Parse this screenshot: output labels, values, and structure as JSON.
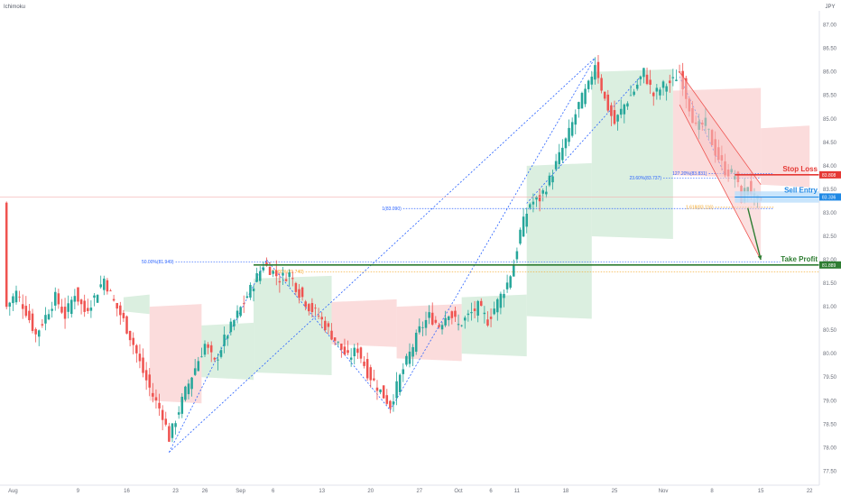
{
  "header": {
    "indicator_label": "Ichimoku",
    "currency_label": "JPY"
  },
  "colors": {
    "up": "#26a69a",
    "down": "#ef5350",
    "stop_loss": "#e53935",
    "sell_entry": "#1e88e5",
    "take_profit": "#2e7d32",
    "fib_blue": "#2962ff",
    "fib_orange": "#f5a623",
    "kumo_bull": "#cfe9d6",
    "kumo_bear": "#f9d0d0",
    "channel_fill": "#f8c7c7",
    "channel_line": "#ef5350",
    "entry_zone": "#bbdefb"
  },
  "annotations": {
    "stop_loss_label": "Stop Loss",
    "sell_entry_label": "Sell Entry",
    "take_profit_label": "Take Profit"
  },
  "chart_data": {
    "type": "candlestick",
    "symbol_currency": "JPY",
    "indicator": "Ichimoku",
    "ylim": [
      77.2,
      87.3
    ],
    "y_ticks": [
      "77.50",
      "78.00",
      "78.50",
      "79.00",
      "79.50",
      "80.00",
      "80.50",
      "81.00",
      "81.50",
      "82.00",
      "82.50",
      "83.00",
      "83.50",
      "84.00",
      "84.50",
      "85.00",
      "85.50",
      "86.00",
      "86.50",
      "87.00"
    ],
    "x_ticks": [
      {
        "label": "Aug",
        "bar": 2
      },
      {
        "label": "9",
        "bar": 22
      },
      {
        "label": "16",
        "bar": 37
      },
      {
        "label": "23",
        "bar": 52
      },
      {
        "label": "26",
        "bar": 61
      },
      {
        "label": "Sep",
        "bar": 72
      },
      {
        "label": "6",
        "bar": 82
      },
      {
        "label": "13",
        "bar": 97
      },
      {
        "label": "20",
        "bar": 112
      },
      {
        "label": "27",
        "bar": 127
      },
      {
        "label": "Oct",
        "bar": 139
      },
      {
        "label": "6",
        "bar": 149
      },
      {
        "label": "11",
        "bar": 157
      },
      {
        "label": "18",
        "bar": 172
      },
      {
        "label": "25",
        "bar": 187
      },
      {
        "label": "Nov",
        "bar": 202
      },
      {
        "label": "8",
        "bar": 217
      },
      {
        "label": "15",
        "bar": 232
      },
      {
        "label": "22",
        "bar": 247
      }
    ],
    "price_path": [
      [
        0,
        81.0
      ],
      [
        3,
        81.3
      ],
      [
        6,
        80.9
      ],
      [
        9,
        80.4
      ],
      [
        12,
        80.8
      ],
      [
        15,
        81.2
      ],
      [
        18,
        80.8
      ],
      [
        21,
        81.3
      ],
      [
        24,
        80.9
      ],
      [
        27,
        81.2
      ],
      [
        30,
        81.6
      ],
      [
        33,
        81.1
      ],
      [
        36,
        80.7
      ],
      [
        39,
        80.2
      ],
      [
        42,
        79.6
      ],
      [
        45,
        79.1
      ],
      [
        48,
        78.7
      ],
      [
        50,
        78.2
      ],
      [
        52,
        78.6
      ],
      [
        55,
        79.2
      ],
      [
        58,
        79.7
      ],
      [
        61,
        80.2
      ],
      [
        64,
        79.8
      ],
      [
        67,
        80.3
      ],
      [
        70,
        80.7
      ],
      [
        73,
        81.1
      ],
      [
        76,
        81.5
      ],
      [
        79,
        81.9
      ],
      [
        81,
        81.8
      ],
      [
        84,
        81.6
      ],
      [
        87,
        81.7
      ],
      [
        90,
        81.3
      ],
      [
        93,
        81.0
      ],
      [
        96,
        80.8
      ],
      [
        99,
        80.5
      ],
      [
        102,
        80.2
      ],
      [
        105,
        79.9
      ],
      [
        108,
        80.1
      ],
      [
        111,
        79.6
      ],
      [
        114,
        79.3
      ],
      [
        117,
        79.0
      ],
      [
        118,
        78.9
      ],
      [
        121,
        79.5
      ],
      [
        124,
        80.0
      ],
      [
        127,
        80.5
      ],
      [
        130,
        80.8
      ],
      [
        133,
        80.6
      ],
      [
        136,
        80.9
      ],
      [
        139,
        80.6
      ],
      [
        142,
        80.8
      ],
      [
        145,
        81.0
      ],
      [
        148,
        80.7
      ],
      [
        151,
        81.1
      ],
      [
        154,
        81.5
      ],
      [
        156,
        81.9
      ],
      [
        158,
        82.6
      ],
      [
        161,
        83.2
      ],
      [
        164,
        83.3
      ],
      [
        167,
        83.7
      ],
      [
        170,
        84.2
      ],
      [
        173,
        84.7
      ],
      [
        176,
        85.3
      ],
      [
        179,
        85.7
      ],
      [
        181,
        86.2
      ],
      [
        184,
        85.4
      ],
      [
        187,
        84.9
      ],
      [
        190,
        85.3
      ],
      [
        193,
        85.6
      ],
      [
        196,
        86.0
      ],
      [
        199,
        85.5
      ],
      [
        202,
        85.7
      ],
      [
        205,
        85.8
      ],
      [
        207,
        86.0
      ],
      [
        209,
        85.5
      ],
      [
        212,
        84.8
      ],
      [
        215,
        84.9
      ],
      [
        218,
        84.3
      ],
      [
        221,
        83.9
      ],
      [
        224,
        83.8
      ],
      [
        226,
        83.3
      ],
      [
        228,
        83.6
      ],
      [
        230,
        83.3
      ],
      [
        232,
        83.2
      ]
    ],
    "levels": {
      "stop_loss": 83.808,
      "sell_entry": 83.336,
      "take_profit": 81.889
    },
    "price_tags": {
      "stop_loss": "83.808",
      "sell_entry": "83.336",
      "take_profit": "81.889"
    },
    "fib_labels": {
      "retr_50": "50.00%(81.949)",
      "retr_100": "1(83.090)",
      "retr_236": "23.60%(83.737)",
      "retr_618": "61.80%(81.740)",
      "ext_127": "127.20%(83.831)",
      "ext_1618": "1.618(83.116)"
    },
    "fib_values": {
      "retr_50": 81.949,
      "retr_100": 83.09,
      "retr_236": 83.737,
      "retr_618": 81.74,
      "ext_127": 83.831,
      "ext_1618": 83.116
    },
    "reference_line": 83.336,
    "fib_diagonals": [
      [
        [
          50,
          77.9
        ],
        [
          181,
          86.3
        ]
      ],
      [
        [
          118,
          78.8
        ],
        [
          181,
          86.3
        ]
      ],
      [
        [
          50,
          77.9
        ],
        [
          80,
          82.0
        ]
      ],
      [
        [
          80,
          82.0
        ],
        [
          118,
          78.8
        ]
      ],
      [
        [
          160,
          83.2
        ],
        [
          195,
          85.9
        ]
      ],
      [
        [
          207,
          85.9
        ],
        [
          221,
          83.8
        ]
      ]
    ],
    "channel": {
      "upper_start": [
        207,
        86.0
      ],
      "upper_end": [
        232,
        83.6
      ],
      "lower_start": [
        207,
        85.3
      ],
      "lower_end": [
        232,
        82.0
      ]
    },
    "take_profit_arrow": {
      "from": [
        228,
        83.1
      ],
      "to": [
        232,
        82.0
      ]
    },
    "kumo_segments": [
      {
        "type": "bull",
        "from": 36,
        "to": 44,
        "top": 81.2,
        "bottom": 80.9
      },
      {
        "type": "bear",
        "from": 44,
        "to": 60,
        "top": 81.0,
        "bottom": 79.0
      },
      {
        "type": "bull",
        "from": 60,
        "to": 76,
        "top": 80.6,
        "bottom": 79.5
      },
      {
        "type": "bull",
        "from": 76,
        "to": 100,
        "top": 81.6,
        "bottom": 79.6
      },
      {
        "type": "bear",
        "from": 100,
        "to": 120,
        "top": 81.1,
        "bottom": 80.2
      },
      {
        "type": "bear",
        "from": 120,
        "to": 140,
        "top": 81.0,
        "bottom": 79.9
      },
      {
        "type": "bull",
        "from": 140,
        "to": 160,
        "top": 81.2,
        "bottom": 80.0
      },
      {
        "type": "bull",
        "from": 160,
        "to": 180,
        "top": 84.0,
        "bottom": 80.8
      },
      {
        "type": "bull",
        "from": 180,
        "to": 205,
        "top": 86.0,
        "bottom": 82.5
      },
      {
        "type": "bear",
        "from": 205,
        "to": 232,
        "top": 85.6,
        "bottom": 83.8
      },
      {
        "type": "bear",
        "from": 232,
        "to": 247,
        "top": 84.8,
        "bottom": 83.6
      }
    ]
  }
}
